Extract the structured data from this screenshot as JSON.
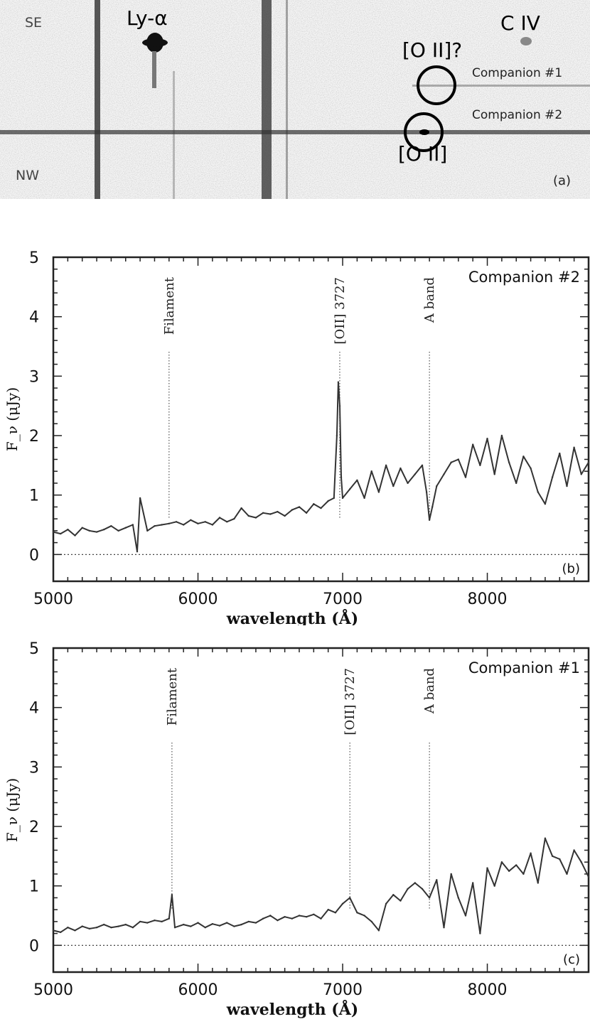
{
  "image_panel": {
    "label_se": "SE",
    "label_nw": "NW",
    "label_lya": "Ly-α",
    "label_civ": "C IV",
    "label_oii_q": "[O II]?",
    "label_oii": "[O II]",
    "label_comp1": "Companion #1",
    "label_comp2": "Companion #2",
    "panel_letter": "(a)"
  },
  "chart_data": [
    {
      "type": "line",
      "panel": "(b)",
      "legend_text": "Companion #2",
      "xlabel": "wavelength (Å)",
      "ylabel": "F_ν (μJy)",
      "xlim": [
        5000,
        8700
      ],
      "ylim": [
        -0.45,
        5
      ],
      "xticks": [
        5000,
        6000,
        7000,
        8000
      ],
      "yticks": [
        0,
        1,
        2,
        3,
        4,
        5
      ],
      "zero_line": true,
      "annotations": [
        {
          "label": "Filament",
          "x": 5800
        },
        {
          "label": "[OII] 3727",
          "x": 6980
        },
        {
          "label": "A band",
          "x": 7600
        }
      ],
      "x": [
        5000,
        5050,
        5100,
        5150,
        5200,
        5250,
        5300,
        5350,
        5400,
        5450,
        5500,
        5550,
        5580,
        5600,
        5650,
        5700,
        5750,
        5800,
        5850,
        5900,
        5950,
        6000,
        6050,
        6100,
        6150,
        6200,
        6250,
        6300,
        6350,
        6400,
        6450,
        6500,
        6550,
        6600,
        6650,
        6700,
        6750,
        6800,
        6850,
        6900,
        6940,
        6960,
        6970,
        6980,
        6990,
        7000,
        7050,
        7100,
        7150,
        7200,
        7250,
        7300,
        7350,
        7400,
        7450,
        7500,
        7550,
        7580,
        7600,
        7620,
        7650,
        7700,
        7750,
        7800,
        7850,
        7900,
        7950,
        8000,
        8050,
        8100,
        8150,
        8200,
        8250,
        8300,
        8350,
        8400,
        8450,
        8500,
        8550,
        8600,
        8650,
        8700
      ],
      "y": [
        0.38,
        0.35,
        0.42,
        0.32,
        0.45,
        0.4,
        0.38,
        0.42,
        0.48,
        0.4,
        0.45,
        0.5,
        0.05,
        0.95,
        0.4,
        0.48,
        0.5,
        0.52,
        0.55,
        0.5,
        0.58,
        0.52,
        0.55,
        0.5,
        0.62,
        0.55,
        0.6,
        0.78,
        0.65,
        0.62,
        0.7,
        0.68,
        0.72,
        0.65,
        0.75,
        0.8,
        0.7,
        0.85,
        0.78,
        0.9,
        0.95,
        2.0,
        2.9,
        2.5,
        1.3,
        0.95,
        1.1,
        1.25,
        0.95,
        1.4,
        1.05,
        1.5,
        1.15,
        1.45,
        1.2,
        1.35,
        1.5,
        1.05,
        0.58,
        0.8,
        1.15,
        1.35,
        1.55,
        1.6,
        1.3,
        1.85,
        1.5,
        1.95,
        1.35,
        2.0,
        1.55,
        1.2,
        1.65,
        1.45,
        1.05,
        0.85,
        1.3,
        1.7,
        1.15,
        1.8,
        1.35,
        1.55
      ]
    },
    {
      "type": "line",
      "panel": "(c)",
      "legend_text": "Companion #1",
      "xlabel": "wavelength (Å)",
      "ylabel": "F_ν (μJy)",
      "xlim": [
        5000,
        8700
      ],
      "ylim": [
        -0.45,
        5
      ],
      "xticks": [
        5000,
        6000,
        7000,
        8000
      ],
      "yticks": [
        0,
        1,
        2,
        3,
        4,
        5
      ],
      "zero_line": true,
      "annotations": [
        {
          "label": "Filament",
          "x": 5820
        },
        {
          "label": "[OII] 3727",
          "x": 7050
        },
        {
          "label": "A band",
          "x": 7600
        }
      ],
      "x": [
        5000,
        5050,
        5100,
        5150,
        5200,
        5250,
        5300,
        5350,
        5400,
        5450,
        5500,
        5550,
        5600,
        5650,
        5700,
        5750,
        5800,
        5820,
        5840,
        5900,
        5950,
        6000,
        6050,
        6100,
        6150,
        6200,
        6250,
        6300,
        6350,
        6400,
        6450,
        6500,
        6550,
        6600,
        6650,
        6700,
        6750,
        6800,
        6850,
        6900,
        6950,
        7000,
        7050,
        7100,
        7150,
        7200,
        7250,
        7300,
        7350,
        7400,
        7450,
        7500,
        7550,
        7600,
        7650,
        7700,
        7750,
        7800,
        7850,
        7900,
        7950,
        8000,
        8050,
        8100,
        8150,
        8200,
        8250,
        8300,
        8350,
        8400,
        8450,
        8500,
        8550,
        8600,
        8650,
        8700
      ],
      "y": [
        0.25,
        0.22,
        0.3,
        0.25,
        0.32,
        0.28,
        0.3,
        0.35,
        0.3,
        0.32,
        0.35,
        0.3,
        0.4,
        0.38,
        0.42,
        0.4,
        0.45,
        0.85,
        0.3,
        0.35,
        0.32,
        0.38,
        0.3,
        0.36,
        0.33,
        0.38,
        0.32,
        0.35,
        0.4,
        0.38,
        0.45,
        0.5,
        0.42,
        0.48,
        0.45,
        0.5,
        0.48,
        0.52,
        0.45,
        0.6,
        0.55,
        0.7,
        0.8,
        0.55,
        0.5,
        0.4,
        0.25,
        0.7,
        0.85,
        0.75,
        0.95,
        1.05,
        0.95,
        0.8,
        1.1,
        0.3,
        1.2,
        0.8,
        0.5,
        1.05,
        0.2,
        1.3,
        1.0,
        1.4,
        1.25,
        1.35,
        1.2,
        1.55,
        1.05,
        1.8,
        1.5,
        1.45,
        1.2,
        1.6,
        1.4,
        1.15
      ]
    }
  ]
}
